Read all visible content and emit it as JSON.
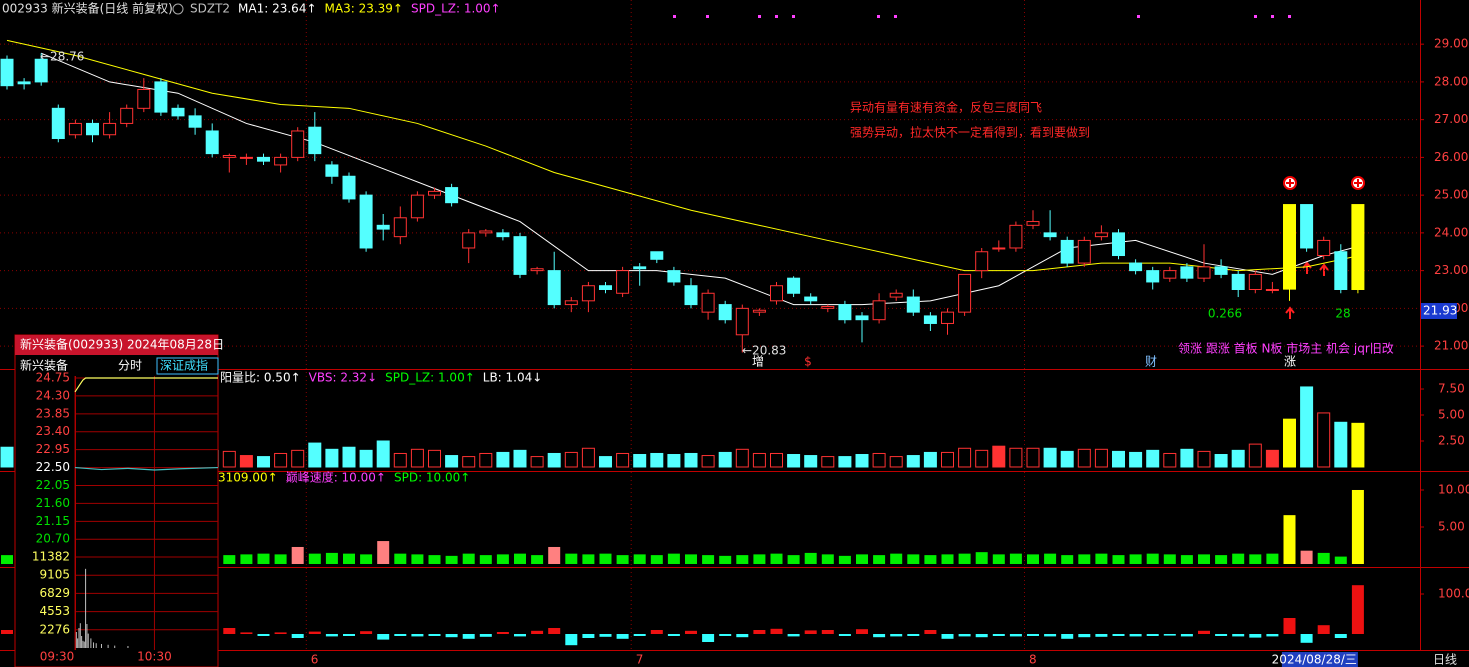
{
  "chart_data": {
    "type": "candlestick",
    "title": "002933 新兴装备(日线 前复权)",
    "indicators": [
      {
        "text": "SDZT2",
        "color": "#c0c0c0"
      },
      {
        "text": "MA1: 23.64↑",
        "color": "#ffffff"
      },
      {
        "text": "MA3: 23.39↑",
        "color": "#ffff00"
      },
      {
        "text": "SPD_LZ: 1.00↑",
        "color": "#ff40ff"
      }
    ],
    "categories": [
      null,
      null,
      null,
      null,
      null,
      null,
      null,
      null,
      null,
      null,
      null,
      null,
      null,
      null,
      null,
      null,
      null,
      null,
      "6",
      null,
      null,
      null,
      null,
      null,
      null,
      null,
      null,
      null,
      null,
      null,
      null,
      null,
      null,
      null,
      null,
      null,
      null,
      "7",
      null,
      null,
      null,
      null,
      null,
      null,
      null,
      null,
      null,
      null,
      null,
      null,
      null,
      null,
      null,
      null,
      null,
      null,
      null,
      null,
      null,
      null,
      "8",
      null,
      null,
      null,
      null,
      null,
      null,
      null,
      null,
      null,
      null,
      null,
      null,
      null,
      null,
      null,
      null,
      null,
      null,
      "2024/08/28/三"
    ],
    "open": [
      28.6,
      28.0,
      28.6,
      27.3,
      26.6,
      26.9,
      26.6,
      26.9,
      27.3,
      28.0,
      27.3,
      27.1,
      26.7,
      26.0,
      26.0,
      26.0,
      25.8,
      26.0,
      26.8,
      25.8,
      25.5,
      25.0,
      24.2,
      23.9,
      24.4,
      25.0,
      25.2,
      23.6,
      24.0,
      24.0,
      23.9,
      23.0,
      23.0,
      22.1,
      22.2,
      22.6,
      22.4,
      23.1,
      23.5,
      23.0,
      22.6,
      21.9,
      22.1,
      21.3,
      21.9,
      22.2,
      22.8,
      22.3,
      22.0,
      22.1,
      21.8,
      21.7,
      22.3,
      22.3,
      21.8,
      21.6,
      21.9,
      23.0,
      23.6,
      23.6,
      24.2,
      24.0,
      23.8,
      23.2,
      23.9,
      24.0,
      23.2,
      23.0,
      22.8,
      23.1,
      22.8,
      23.1,
      22.9,
      22.5,
      22.5,
      22.51,
      24.75,
      23.4,
      23.5,
      22.5
    ],
    "high": [
      28.7,
      28.1,
      28.76,
      27.4,
      27.0,
      27.0,
      27.2,
      27.4,
      28.1,
      28.1,
      27.4,
      27.3,
      26.9,
      26.1,
      26.1,
      26.1,
      26.1,
      26.8,
      27.2,
      25.9,
      25.6,
      25.1,
      24.5,
      24.7,
      25.1,
      25.2,
      25.3,
      24.1,
      24.1,
      24.1,
      24.0,
      23.1,
      23.5,
      22.3,
      22.7,
      22.7,
      23.1,
      23.2,
      23.5,
      23.1,
      22.8,
      22.5,
      22.2,
      22.1,
      22.0,
      22.7,
      22.85,
      22.4,
      22.1,
      22.2,
      21.9,
      22.4,
      22.5,
      22.5,
      21.9,
      22.0,
      22.9,
      23.6,
      23.8,
      24.3,
      24.6,
      24.6,
      23.9,
      23.9,
      24.2,
      24.1,
      23.3,
      23.1,
      23.1,
      23.2,
      23.7,
      23.3,
      23.0,
      23.0,
      22.7,
      24.75,
      24.75,
      23.9,
      23.7,
      24.75
    ],
    "low": [
      27.8,
      27.8,
      27.9,
      26.4,
      26.5,
      26.4,
      26.5,
      26.8,
      27.2,
      27.1,
      27.0,
      26.6,
      26.0,
      25.6,
      25.8,
      25.8,
      25.6,
      25.9,
      25.9,
      25.3,
      24.8,
      23.5,
      23.8,
      23.7,
      24.3,
      24.9,
      24.7,
      23.2,
      23.9,
      23.8,
      22.8,
      22.9,
      22.0,
      21.9,
      21.9,
      22.4,
      22.3,
      22.6,
      23.2,
      22.6,
      22.0,
      21.7,
      21.6,
      20.83,
      21.8,
      22.1,
      22.3,
      22.1,
      21.9,
      21.6,
      21.1,
      21.6,
      22.2,
      21.8,
      21.4,
      21.3,
      21.8,
      22.8,
      23.5,
      23.5,
      24.1,
      23.8,
      23.1,
      23.1,
      23.8,
      23.3,
      22.9,
      22.5,
      22.7,
      22.7,
      22.7,
      22.8,
      22.3,
      22.4,
      22.4,
      22.2,
      23.5,
      23.3,
      22.4,
      22.4
    ],
    "close": [
      27.9,
      27.95,
      28.0,
      26.5,
      26.9,
      26.6,
      26.9,
      27.3,
      27.8,
      27.2,
      27.1,
      26.8,
      26.1,
      26.05,
      26.0,
      25.9,
      26.0,
      26.7,
      26.1,
      25.5,
      24.9,
      23.6,
      24.1,
      24.4,
      25.0,
      25.1,
      24.8,
      24.0,
      24.05,
      23.9,
      22.9,
      23.05,
      22.1,
      22.2,
      22.6,
      22.5,
      23.0,
      23.05,
      23.3,
      22.7,
      22.1,
      22.4,
      21.7,
      22.0,
      21.95,
      22.6,
      22.4,
      22.2,
      22.05,
      21.7,
      21.7,
      22.2,
      22.4,
      21.9,
      21.6,
      21.9,
      22.9,
      23.5,
      23.6,
      24.2,
      24.3,
      23.9,
      23.2,
      23.8,
      24.0,
      23.4,
      23.0,
      22.7,
      23.0,
      22.8,
      23.1,
      22.9,
      22.5,
      22.9,
      22.5,
      24.75,
      23.6,
      23.8,
      22.5,
      24.75
    ],
    "up_color": "#ff3232",
    "down_color": "#54ffff",
    "signal_color": "#ffff00",
    "signal_days": [
      75,
      79
    ],
    "ylim": [
      20.42,
      30.17
    ],
    "yticks": [
      {
        "value": 21,
        "label": "21.00"
      },
      {
        "value": 22,
        "label": "22.00"
      },
      {
        "value": 23,
        "label": "23.00"
      },
      {
        "value": 24,
        "label": "24.00"
      },
      {
        "value": 25,
        "label": "25.00"
      },
      {
        "value": 26,
        "label": "26.00"
      },
      {
        "value": 27,
        "label": "27.00"
      },
      {
        "value": 28,
        "label": "28.00"
      },
      {
        "value": 29,
        "label": "29.00"
      }
    ],
    "grid": true,
    "ma_lines": [
      {
        "color": "#ffffff",
        "x": [
          2,
          6,
          10,
          14,
          18,
          22,
          26,
          30,
          34,
          38,
          42,
          46,
          50,
          54,
          58,
          62,
          66,
          70,
          74,
          77,
          79
        ],
        "values": [
          28.76,
          28.0,
          27.7,
          26.9,
          26.4,
          25.7,
          25.0,
          24.3,
          23.0,
          23.0,
          22.8,
          22.1,
          22.1,
          22.2,
          22.6,
          23.6,
          23.8,
          23.2,
          22.9,
          23.4,
          23.64
        ]
      },
      {
        "color": "#ffff00",
        "x": [
          0,
          4,
          8,
          12,
          16,
          20,
          24,
          28,
          32,
          36,
          40,
          44,
          48,
          52,
          56,
          60,
          64,
          68,
          72,
          76,
          79
        ],
        "values": [
          29.1,
          28.7,
          28.2,
          27.7,
          27.4,
          27.3,
          26.9,
          26.3,
          25.6,
          25.1,
          24.6,
          24.2,
          23.8,
          23.4,
          23.0,
          23.0,
          23.2,
          23.2,
          23.0,
          23.1,
          23.39
        ]
      }
    ],
    "price_tag": 21.93,
    "high_label": "←28.76",
    "low_label": "←20.83",
    "note_lines": [
      "异动有量有速有资金，反包三度同飞",
      "强势异动，拉太快不一定看得到，看到要做到"
    ],
    "ratio_label": "0.266",
    "count_label": "28",
    "tags_label": "领涨 跟涨 首板 N板 市场主 机会 jqr旧改",
    "markers": [
      "增",
      "$",
      "财",
      "涨"
    ],
    "period_label": "日线"
  },
  "volume_panel": {
    "type": "bar",
    "indicators": [
      {
        "text": "阳量比: 0.50↑",
        "color": "#ffffff"
      },
      {
        "text": "VBS: 2.32↓",
        "color": "#ff40ff"
      },
      {
        "text": "SPD_LZ: 1.00↑",
        "color": "#00ff00"
      },
      {
        "text": "LB: 1.04↓",
        "color": "#ffffff"
      }
    ],
    "values": [
      1.9,
      1.5,
      1.6,
      1.8,
      1.4,
      1.3,
      1.4,
      1.6,
      1.7,
      1.9,
      1.5,
      1.4,
      1.6,
      1.5,
      1.1,
      1.0,
      1.3,
      1.6,
      2.3,
      1.7,
      1.9,
      1.6,
      2.5,
      1.3,
      1.7,
      1.6,
      1.1,
      1.0,
      1.3,
      1.4,
      1.6,
      1.0,
      1.3,
      1.4,
      1.8,
      1.0,
      1.3,
      1.2,
      1.3,
      1.2,
      1.3,
      1.1,
      1.4,
      1.7,
      1.3,
      1.3,
      1.2,
      1.1,
      1.0,
      1.0,
      1.2,
      1.3,
      1.0,
      1.1,
      1.4,
      1.4,
      1.8,
      1.6,
      2.0,
      1.8,
      1.8,
      1.8,
      1.5,
      1.7,
      1.7,
      1.5,
      1.4,
      1.6,
      1.3,
      1.7,
      1.5,
      1.2,
      1.6,
      2.2,
      1.6,
      4.6,
      7.7,
      5.2,
      4.3,
      4.2
    ],
    "ylim": [
      -0.29,
      9.33
    ],
    "yticks": [
      {
        "value": 2.5,
        "label": "2.50"
      },
      {
        "value": 5,
        "label": "5.00"
      },
      {
        "value": 7.5,
        "label": "7.50"
      }
    ]
  },
  "speed_panel": {
    "type": "bar",
    "indicators": [
      {
        "text": "3109.00↑",
        "color": "#ffff00"
      },
      {
        "text": "巅峰速度: 10.00↑",
        "color": "#ff40ff"
      },
      {
        "text": "SPD: 10.00↑",
        "color": "#00ff00"
      }
    ],
    "values": [
      1.2,
      1.1,
      1.2,
      1.3,
      1.2,
      1.1,
      1.2,
      1.3,
      1.2,
      1.1,
      1.2,
      1.1,
      1.2,
      1.2,
      1.3,
      1.4,
      1.3,
      2.3,
      1.4,
      1.5,
      1.4,
      1.3,
      3.1,
      1.4,
      1.3,
      1.2,
      1.1,
      1.4,
      1.2,
      1.3,
      1.4,
      1.2,
      2.3,
      1.4,
      1.3,
      1.4,
      1.2,
      1.3,
      1.2,
      1.4,
      1.3,
      1.2,
      1.1,
      1.2,
      1.3,
      1.4,
      1.2,
      1.5,
      1.3,
      1.1,
      1.3,
      1.2,
      1.4,
      1.3,
      1.2,
      1.3,
      1.4,
      1.6,
      1.3,
      1.4,
      1.3,
      1.4,
      1.2,
      1.3,
      1.4,
      1.2,
      1.3,
      1.4,
      1.3,
      1.2,
      1.3,
      1.2,
      1.4,
      1.3,
      1.4,
      6.6,
      1.8,
      1.5,
      1.0,
      10.0
    ],
    "color": "#00ee00",
    "alert_color": "#ff8080",
    "alert_days": [
      17,
      22,
      32,
      76
    ],
    "ylim": [
      -0.27,
      12.43
    ],
    "yticks": [
      {
        "value": 5,
        "label": "5.00"
      },
      {
        "value": 10,
        "label": "10.00"
      }
    ]
  },
  "flow_panel": {
    "type": "bar",
    "values": [
      10,
      5,
      -8,
      12,
      -6,
      6,
      8,
      -10,
      9,
      -5,
      -7,
      8,
      -6,
      15,
      4,
      -5,
      4,
      -10,
      6,
      -6,
      -5,
      7,
      -14,
      -5,
      -6,
      -5,
      -8,
      -12,
      -7,
      5,
      -6,
      8,
      15,
      -28,
      -10,
      -7,
      -12,
      -5,
      10,
      -5,
      8,
      -20,
      -5,
      -8,
      10,
      13,
      -6,
      9,
      10,
      -5,
      12,
      -8,
      -6,
      -5,
      10,
      -12,
      -6,
      -8,
      -5,
      -6,
      -5,
      -6,
      -12,
      -8,
      -7,
      -5,
      -6,
      -5,
      -4,
      -6,
      8,
      -5,
      -6,
      -9,
      -6,
      40,
      -22,
      22,
      -10,
      122
    ],
    "pos_color": "#ee1111",
    "neg_color": "#33ffff",
    "ylim": [
      -40,
      165
    ],
    "yticks": [
      {
        "value": 100,
        "label": "100.0"
      }
    ]
  },
  "intraday": {
    "type": "line",
    "title": "新兴装备(002933) 2024年08月28日",
    "tabs": [
      "新兴装备",
      "分时",
      "深证成指"
    ],
    "xlim": [
      0,
      108
    ],
    "xticks": [
      {
        "value": 0,
        "label": "09:30"
      },
      {
        "value": 60,
        "label": "10:30"
      }
    ],
    "ylim": [
      20.48,
      24.8
    ],
    "yticks": [
      24.75,
      {
        "value": 24.3,
        "label": "24.30"
      },
      23.85,
      {
        "value": 23.4,
        "label": "23.40"
      },
      22.95,
      {
        "value": 22.5,
        "label": "22.50"
      },
      22.05,
      {
        "value": 21.6,
        "label": "21.60"
      },
      21.15,
      {
        "value": 20.7,
        "label": "20.70"
      }
    ],
    "price": {
      "color": "#ffff60",
      "x": [
        0,
        2,
        4,
        6,
        8,
        12,
        108
      ],
      "values": [
        24.4,
        24.5,
        24.6,
        24.7,
        24.75,
        24.75,
        24.75
      ]
    },
    "average": {
      "color": "#40c0c0",
      "x": [
        0,
        20,
        40,
        60,
        80,
        108
      ],
      "values": [
        22.5,
        22.45,
        22.48,
        22.44,
        22.47,
        22.5
      ]
    },
    "volume": {
      "color": "#c0c0c0",
      "x": [
        1,
        2,
        3,
        4,
        5,
        6,
        7,
        8,
        9,
        10,
        12,
        14,
        16,
        20,
        25,
        30,
        40
      ],
      "values": [
        2000,
        1200,
        2500,
        3100,
        1500,
        900,
        800,
        9900,
        3000,
        1800,
        1200,
        700,
        600,
        500,
        400,
        300,
        250
      ]
    },
    "vol_ylim": [
      0,
      12006
    ],
    "vol_ticks": [
      11382,
      9105,
      6829,
      4553,
      2276
    ]
  }
}
